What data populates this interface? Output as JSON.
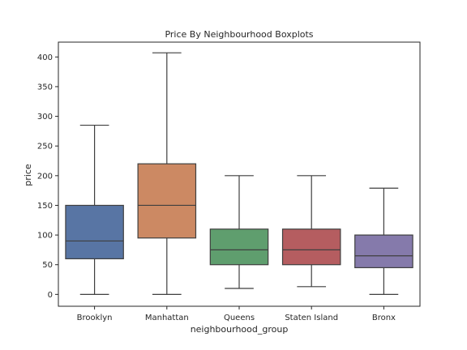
{
  "chart_data": {
    "type": "boxplot",
    "title": "Price By Neighbourhood Boxplots",
    "xlabel": "neighbourhood_group",
    "ylabel": "price",
    "ylim": [
      -20,
      425
    ],
    "yticks": [
      0,
      50,
      100,
      150,
      200,
      250,
      300,
      350,
      400
    ],
    "grid": false,
    "categories": [
      "Brooklyn",
      "Manhattan",
      "Queens",
      "Staten Island",
      "Bronx"
    ],
    "series": [
      {
        "category": "Brooklyn",
        "color": "#5875a4",
        "whisker_low": 0,
        "q1": 60,
        "median": 90,
        "q3": 150,
        "whisker_high": 285
      },
      {
        "category": "Manhattan",
        "color": "#cc8963",
        "whisker_low": 0,
        "q1": 95,
        "median": 150,
        "q3": 220,
        "whisker_high": 407
      },
      {
        "category": "Queens",
        "color": "#5f9e6e",
        "whisker_low": 10,
        "q1": 50,
        "median": 75,
        "q3": 110,
        "whisker_high": 200
      },
      {
        "category": "Staten Island",
        "color": "#b55d60",
        "whisker_low": 13,
        "q1": 50,
        "median": 75,
        "q3": 110,
        "whisker_high": 200
      },
      {
        "category": "Bronx",
        "color": "#857aab",
        "whisker_low": 0,
        "q1": 45,
        "median": 65,
        "q3": 100,
        "whisker_high": 179
      }
    ]
  }
}
